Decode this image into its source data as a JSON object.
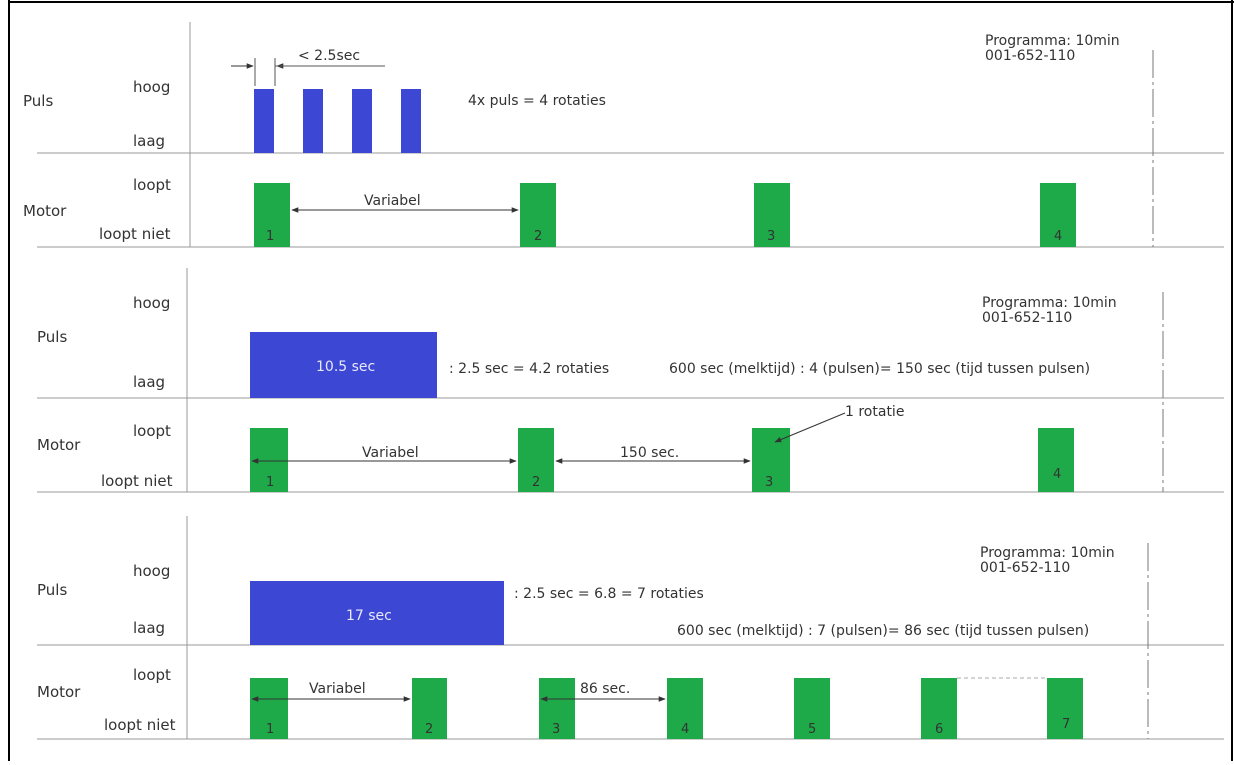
{
  "colors": {
    "pulse": "#3c47d4",
    "motor": "#1faa4a",
    "line": "#777777",
    "frame": "#000000"
  },
  "labels": {
    "puls": "Puls",
    "motor": "Motor",
    "hoog": "hoog",
    "laag": "laag",
    "loopt": "loopt",
    "loopt_niet": "loopt niet",
    "programma": "Programma: 10min",
    "code": "001-652-110",
    "variabel": "Variabel"
  },
  "panel1": {
    "pulse_width_note": "< 2.5sec",
    "pulse_note": "4x puls = 4 rotaties",
    "pulse_count": 4,
    "motor_numbers": [
      "1",
      "2",
      "3",
      "4"
    ]
  },
  "panel2": {
    "pulse_label": "10.5 sec",
    "calc_note": ": 2.5 sec = 4.2 rotaties",
    "formula": "600 sec (melktijd) : 4 (pulsen)= 150 sec (tijd tussen pulsen)",
    "interval": "150 sec.",
    "rotatie_callout": "1 rotatie",
    "motor_numbers": [
      "1",
      "2",
      "3",
      "4"
    ]
  },
  "panel3": {
    "pulse_label": "17 sec",
    "calc_note": ": 2.5 sec = 6.8 = 7 rotaties",
    "formula": "600 sec (melktijd) : 7 (pulsen)= 86 sec (tijd tussen pulsen)",
    "interval": "86 sec.",
    "motor_numbers": [
      "1",
      "2",
      "3",
      "4",
      "5",
      "6",
      "7"
    ]
  }
}
